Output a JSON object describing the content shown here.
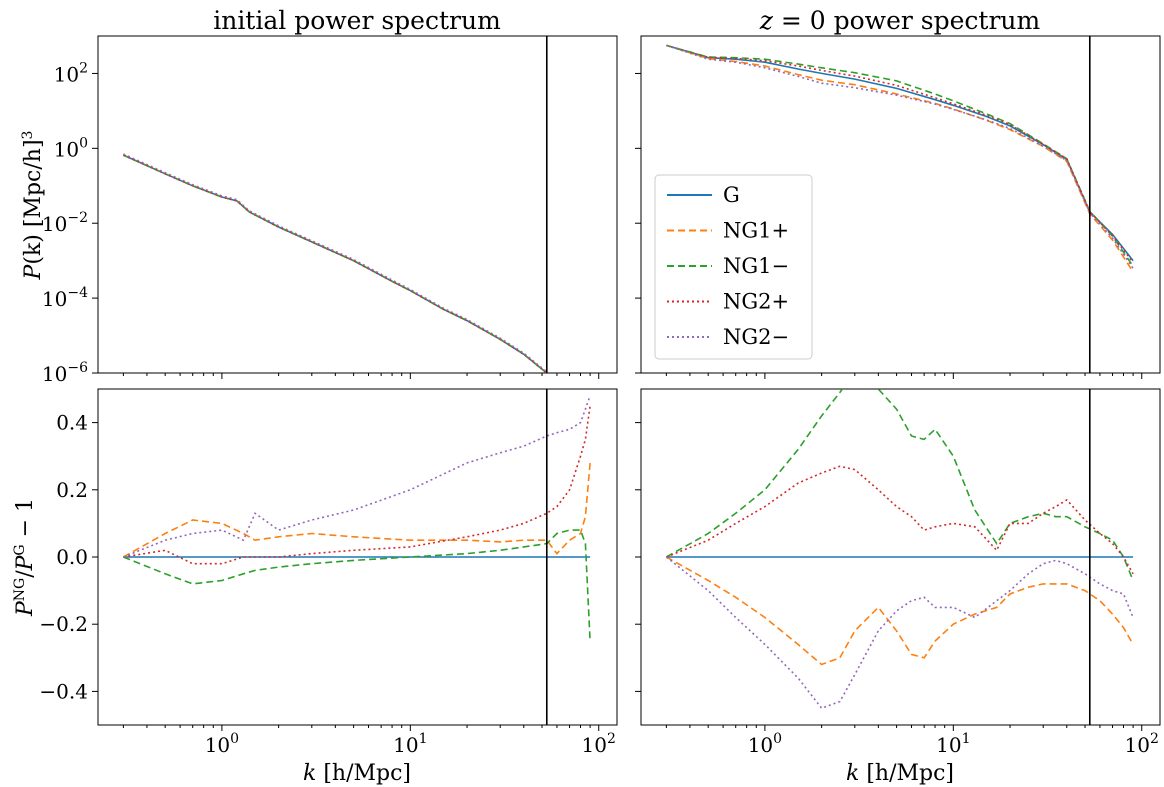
{
  "figure": {
    "panel_titles": {
      "initial_html": "initial power spectrum",
      "z0_prefix": "z",
      "z0_rest": " = 0 power spectrum"
    },
    "ylabel_top": {
      "P": "P",
      "k": "(k)",
      "units": " [Mpc/h]",
      "cube": "3"
    },
    "ylabel_bottom": {
      "P": "P",
      "ng": "NG",
      "slash": "/",
      "P2": "P",
      "g": "G",
      "rest": " − 1"
    },
    "xlabel": {
      "k": "k",
      "units": " [h/Mpc]"
    },
    "top_yticks": [
      {
        "base": "10",
        "exp": "2",
        "value": 2
      },
      {
        "base": "10",
        "exp": "0",
        "value": 0
      },
      {
        "base": "10",
        "exp": "−2",
        "value": -2
      },
      {
        "base": "10",
        "exp": "−4",
        "value": -4
      },
      {
        "base": "10",
        "exp": "−6",
        "value": -6
      }
    ],
    "bottom_yticks": [
      {
        "label": "0.4",
        "value": 0.4
      },
      {
        "label": "0.2",
        "value": 0.2
      },
      {
        "label": "0.0",
        "value": 0.0
      },
      {
        "label": "−0.2",
        "value": -0.2
      },
      {
        "label": "−0.4",
        "value": -0.4
      }
    ],
    "xticks": [
      {
        "base": "10",
        "exp": "0",
        "value": 1
      },
      {
        "base": "10",
        "exp": "1",
        "value": 10
      },
      {
        "base": "10",
        "exp": "2",
        "value": 100
      }
    ],
    "legend": [
      {
        "name": "G",
        "color": "#1f77b4",
        "dash": "solid"
      },
      {
        "name": "NG1+",
        "color": "#ff7f0e",
        "dash": "dashed"
      },
      {
        "name": "NG1−",
        "color": "#2ca02c",
        "dash": "dashed"
      },
      {
        "name": "NG2+",
        "color": "#d62728",
        "dash": "dotted"
      },
      {
        "name": "NG2−",
        "color": "#9467bd",
        "dash": "dotted"
      }
    ]
  },
  "chart_data": [
    {
      "panel": "top-left",
      "type": "line",
      "title": "initial power spectrum",
      "ylabel": "P(k) [Mpc/h]^3",
      "xscale": "log",
      "yscale": "log",
      "xlim": [
        0.22,
        125
      ],
      "ylim_log10": [
        -6,
        3
      ],
      "vline_k": 53,
      "x": [
        0.3,
        0.5,
        0.7,
        1.0,
        1.2,
        1.4,
        2.0,
        3.0,
        5.0,
        8.0,
        10,
        15,
        20,
        30,
        40,
        53
      ],
      "series": [
        {
          "name": "G",
          "log10_values": [
            -0.18,
            -0.68,
            -1.0,
            -1.3,
            -1.4,
            -1.7,
            -2.1,
            -2.5,
            -3.0,
            -3.55,
            -3.8,
            -4.3,
            -4.6,
            -5.1,
            -5.5,
            -6.0
          ]
        },
        {
          "name": "NG1+",
          "log10_values": [
            -0.18,
            -0.68,
            -1.0,
            -1.3,
            -1.4,
            -1.7,
            -2.1,
            -2.5,
            -3.0,
            -3.55,
            -3.8,
            -4.3,
            -4.6,
            -5.1,
            -5.5,
            -6.0
          ]
        },
        {
          "name": "NG1−",
          "log10_values": [
            -0.18,
            -0.68,
            -1.0,
            -1.3,
            -1.4,
            -1.7,
            -2.1,
            -2.5,
            -3.0,
            -3.55,
            -3.8,
            -4.3,
            -4.6,
            -5.1,
            -5.5,
            -6.0
          ]
        },
        {
          "name": "NG2+",
          "log10_values": [
            -0.18,
            -0.68,
            -1.0,
            -1.3,
            -1.4,
            -1.7,
            -2.1,
            -2.5,
            -3.0,
            -3.55,
            -3.8,
            -4.3,
            -4.6,
            -5.1,
            -5.5,
            -6.0
          ]
        },
        {
          "name": "NG2−",
          "log10_values": [
            -0.15,
            -0.65,
            -0.97,
            -1.27,
            -1.37,
            -1.67,
            -2.07,
            -2.47,
            -2.97,
            -3.52,
            -3.77,
            -4.27,
            -4.57,
            -5.07,
            -5.47,
            -5.97
          ]
        }
      ]
    },
    {
      "panel": "top-right",
      "type": "line",
      "title": "z = 0 power spectrum",
      "xscale": "log",
      "yscale": "log",
      "xlim": [
        0.22,
        125
      ],
      "ylim_log10": [
        -6,
        3
      ],
      "vline_k": 53,
      "legend_position": "lower-left",
      "x": [
        0.3,
        0.5,
        0.7,
        1.0,
        1.5,
        2.0,
        3.0,
        5.0,
        8.0,
        10,
        15,
        20,
        30,
        40,
        53,
        70,
        90
      ],
      "series": [
        {
          "name": "G",
          "log10_values": [
            2.75,
            2.42,
            2.38,
            2.3,
            2.12,
            2.0,
            1.85,
            1.6,
            1.3,
            1.15,
            0.85,
            0.6,
            0.1,
            -0.3,
            -1.7,
            -2.3,
            -3.0
          ]
        },
        {
          "name": "NG1+",
          "log10_values": [
            2.75,
            2.4,
            2.32,
            2.2,
            1.97,
            1.82,
            1.7,
            1.45,
            1.2,
            1.05,
            0.75,
            0.5,
            0.05,
            -0.35,
            -1.75,
            -2.45,
            -3.3
          ]
        },
        {
          "name": "NG1−",
          "log10_values": [
            2.75,
            2.44,
            2.42,
            2.38,
            2.25,
            2.15,
            2.02,
            1.8,
            1.45,
            1.27,
            0.92,
            0.66,
            0.12,
            -0.28,
            -1.68,
            -2.35,
            -3.15
          ]
        },
        {
          "name": "NG2+",
          "log10_values": [
            2.75,
            2.43,
            2.4,
            2.34,
            2.2,
            2.08,
            1.93,
            1.68,
            1.35,
            1.19,
            0.88,
            0.63,
            0.11,
            -0.28,
            -1.69,
            -2.33,
            -3.05
          ]
        },
        {
          "name": "NG2−",
          "log10_values": [
            2.75,
            2.38,
            2.3,
            2.15,
            1.92,
            1.74,
            1.62,
            1.42,
            1.18,
            1.04,
            0.76,
            0.53,
            0.06,
            -0.33,
            -1.72,
            -2.4,
            -3.2
          ]
        }
      ]
    },
    {
      "panel": "bottom-left",
      "type": "line",
      "ylabel": "P^NG/P^G − 1",
      "xlabel": "k [h/Mpc]",
      "xscale": "log",
      "xlim": [
        0.22,
        125
      ],
      "ylim": [
        -0.5,
        0.5
      ],
      "vline_k": 53,
      "x": [
        0.3,
        0.5,
        0.7,
        1.0,
        1.3,
        1.5,
        2.0,
        3.0,
        5.0,
        10,
        20,
        30,
        40,
        53,
        60,
        70,
        80,
        85,
        90
      ],
      "series": [
        {
          "name": "G",
          "values": [
            0,
            0,
            0,
            0,
            0,
            0,
            0,
            0,
            0,
            0,
            0,
            0,
            0,
            0,
            0,
            0,
            0,
            0,
            0
          ]
        },
        {
          "name": "NG1+",
          "values": [
            0,
            0.07,
            0.11,
            0.1,
            0.07,
            0.05,
            0.06,
            0.07,
            0.06,
            0.05,
            0.05,
            0.045,
            0.05,
            0.05,
            0.01,
            0.05,
            0.07,
            0.12,
            0.28
          ]
        },
        {
          "name": "NG1−",
          "values": [
            0,
            -0.05,
            -0.08,
            -0.07,
            -0.05,
            -0.04,
            -0.03,
            -0.02,
            -0.01,
            0.0,
            0.01,
            0.02,
            0.03,
            0.04,
            0.07,
            0.08,
            0.08,
            0.04,
            -0.25
          ]
        },
        {
          "name": "NG2+",
          "values": [
            0,
            0.02,
            -0.02,
            -0.02,
            0.0,
            0.0,
            0.0,
            0.01,
            0.02,
            0.03,
            0.06,
            0.08,
            0.1,
            0.13,
            0.15,
            0.2,
            0.3,
            0.35,
            0.45
          ]
        },
        {
          "name": "NG2−",
          "values": [
            0,
            0.05,
            0.07,
            0.08,
            0.05,
            0.13,
            0.08,
            0.11,
            0.14,
            0.2,
            0.28,
            0.31,
            0.33,
            0.36,
            0.37,
            0.38,
            0.4,
            0.44,
            0.48
          ]
        }
      ]
    },
    {
      "panel": "bottom-right",
      "type": "line",
      "xlabel": "k [h/Mpc]",
      "xscale": "log",
      "xlim": [
        0.22,
        125
      ],
      "ylim": [
        -0.5,
        0.5
      ],
      "vline_k": 53,
      "x": [
        0.3,
        0.5,
        0.7,
        1.0,
        1.5,
        2.0,
        2.5,
        3.0,
        4.0,
        5.0,
        6.0,
        7.0,
        8.0,
        10,
        13,
        17,
        20,
        25,
        30,
        35,
        40,
        50,
        60,
        70,
        80,
        90
      ],
      "series": [
        {
          "name": "G",
          "values": [
            0,
            0,
            0,
            0,
            0,
            0,
            0,
            0,
            0,
            0,
            0,
            0,
            0,
            0,
            0,
            0,
            0,
            0,
            0,
            0,
            0,
            0,
            0,
            0,
            0,
            0
          ]
        },
        {
          "name": "NG1+",
          "values": [
            0,
            -0.07,
            -0.12,
            -0.18,
            -0.26,
            -0.32,
            -0.3,
            -0.22,
            -0.15,
            -0.22,
            -0.29,
            -0.3,
            -0.25,
            -0.2,
            -0.17,
            -0.15,
            -0.11,
            -0.09,
            -0.08,
            -0.08,
            -0.08,
            -0.1,
            -0.13,
            -0.17,
            -0.21,
            -0.26
          ]
        },
        {
          "name": "NG1−",
          "values": [
            0,
            0.07,
            0.13,
            0.2,
            0.32,
            0.42,
            0.49,
            0.55,
            0.5,
            0.44,
            0.36,
            0.35,
            0.38,
            0.3,
            0.14,
            0.04,
            0.1,
            0.12,
            0.13,
            0.12,
            0.12,
            0.09,
            0.07,
            0.05,
            0.0,
            -0.07
          ]
        },
        {
          "name": "NG2+",
          "values": [
            0,
            0.05,
            0.1,
            0.15,
            0.22,
            0.25,
            0.27,
            0.26,
            0.2,
            0.15,
            0.12,
            0.08,
            0.09,
            0.1,
            0.09,
            0.02,
            0.1,
            0.1,
            0.13,
            0.15,
            0.17,
            0.11,
            0.07,
            0.04,
            0.0,
            -0.05
          ]
        },
        {
          "name": "NG2−",
          "values": [
            0,
            -0.1,
            -0.18,
            -0.26,
            -0.36,
            -0.45,
            -0.43,
            -0.35,
            -0.22,
            -0.16,
            -0.13,
            -0.12,
            -0.15,
            -0.15,
            -0.18,
            -0.13,
            -0.1,
            -0.05,
            -0.02,
            -0.01,
            -0.02,
            -0.05,
            -0.08,
            -0.1,
            -0.11,
            -0.18
          ]
        }
      ]
    }
  ]
}
